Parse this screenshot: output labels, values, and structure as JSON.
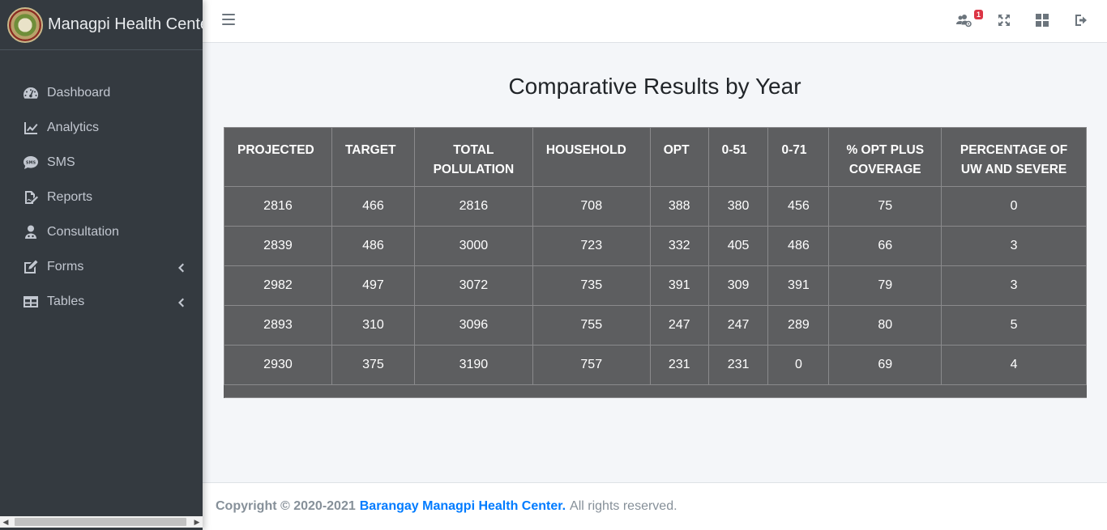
{
  "brand": {
    "title": "Managpi Health Center"
  },
  "sidebar": {
    "items": [
      {
        "label": "Dashboard",
        "icon": "tachometer-icon",
        "has_chevron": false
      },
      {
        "label": "Analytics",
        "icon": "line-chart-icon",
        "has_chevron": false
      },
      {
        "label": "SMS",
        "icon": "sms-icon",
        "has_chevron": false
      },
      {
        "label": "Reports",
        "icon": "file-signature-icon",
        "has_chevron": false
      },
      {
        "label": "Consultation",
        "icon": "user-doctor-icon",
        "has_chevron": false
      },
      {
        "label": "Forms",
        "icon": "edit-icon",
        "has_chevron": true
      },
      {
        "label": "Tables",
        "icon": "table-icon",
        "has_chevron": true
      }
    ]
  },
  "topbar": {
    "notification_count": "1",
    "icons": [
      "users-cog-icon",
      "expand-icon",
      "th-large-icon",
      "sign-out-icon"
    ]
  },
  "main": {
    "title": "Comparative Results by Year",
    "table": {
      "headers": [
        "PROJECTED",
        "TARGET",
        "TOTAL POLULATION",
        "HOUSEHOLD",
        "OPT",
        "0-51",
        "0-71",
        "% OPT PLUS COVERAGE",
        "PERCENTAGE OF UW AND SEVERE"
      ],
      "rows": [
        [
          "2816",
          "466",
          "2816",
          "708",
          "388",
          "380",
          "456",
          "75",
          "0"
        ],
        [
          "2839",
          "486",
          "3000",
          "723",
          "332",
          "405",
          "486",
          "66",
          "3"
        ],
        [
          "2982",
          "497",
          "3072",
          "735",
          "391",
          "309",
          "391",
          "79",
          "3"
        ],
        [
          "2893",
          "310",
          "3096",
          "755",
          "247",
          "247",
          "289",
          "80",
          "5"
        ],
        [
          "2930",
          "375",
          "3190",
          "757",
          "231",
          "231",
          "0",
          "69",
          "4"
        ]
      ]
    }
  },
  "footer": {
    "copyright": "Copyright © 2020-2021",
    "link": "Barangay Managpi Health Center.",
    "rights": "All rights reserved."
  },
  "colors": {
    "sidebar_bg": "#343a40",
    "table_bg": "#5d5e60",
    "link": "#007bff",
    "badge": "#dc3545"
  }
}
